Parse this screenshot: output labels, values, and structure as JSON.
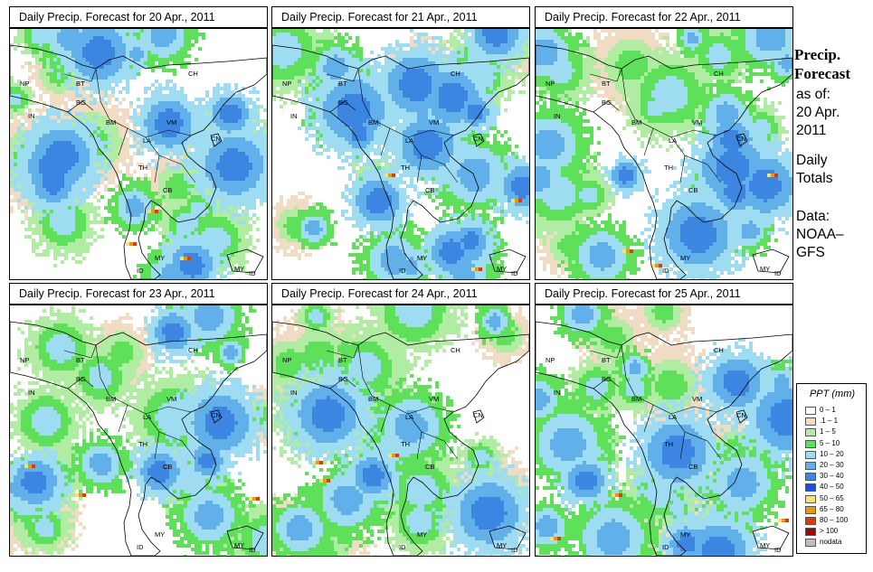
{
  "panels": [
    {
      "title": "Daily Precip. Forecast for  20 Apr., 2011",
      "labels": [
        "NP",
        "BT",
        "BG",
        "IN",
        "CH",
        "BM",
        "VM",
        "LA",
        "CN",
        "TH",
        "CB",
        "MY",
        "ID",
        "MY",
        "ID"
      ]
    },
    {
      "title": "Daily Precip. Forecast for  21 Apr., 2011",
      "labels": [
        "NP",
        "BT",
        "BG",
        "IN",
        "CH",
        "BM",
        "VM",
        "LA",
        "CN",
        "TH",
        "CB",
        "MY",
        "ID",
        "MY",
        "ID"
      ]
    },
    {
      "title": "Daily Precip. Forecast for  22 Apr., 2011",
      "labels": [
        "NP",
        "BT",
        "BG",
        "IN",
        "CH",
        "BM",
        "VM",
        "LA",
        "CN",
        "TH",
        "CB",
        "MY",
        "ID",
        "MY",
        "ID"
      ]
    },
    {
      "title": "Daily Precip. Forecast for  23 Apr., 2011",
      "labels": [
        "NP",
        "BT",
        "BG",
        "IN",
        "CH",
        "BM",
        "VM",
        "LA",
        "CN",
        "TH",
        "CB",
        "MY",
        "ID",
        "MY",
        "ID"
      ]
    },
    {
      "title": "Daily Precip. Forecast for  24 Apr., 2011",
      "labels": [
        "NP",
        "BT",
        "BG",
        "IN",
        "CH",
        "BM",
        "VM",
        "LA",
        "CN",
        "TH",
        "CB",
        "MY",
        "ID",
        "MY",
        "ID"
      ]
    },
    {
      "title": "Daily Precip. Forecast for  25 Apr., 2011",
      "labels": [
        "NP",
        "BT",
        "BG",
        "IN",
        "CH",
        "BM",
        "VM",
        "LA",
        "CN",
        "TH",
        "CB",
        "MY",
        "ID",
        "MY",
        "ID"
      ]
    }
  ],
  "sidebar": {
    "title_line1": "Precip.",
    "title_line2": "Forecast",
    "asof_line1": "as of:",
    "asof_line2": "20 Apr.",
    "asof_line3": "2011",
    "totals_line1": "Daily",
    "totals_line2": "Totals",
    "data_line1": "Data:",
    "data_line2": "NOAA–",
    "data_line3": "GFS"
  },
  "legend": {
    "title": "PPT (mm)",
    "items": [
      {
        "label": "0 – 1",
        "color": "#fefefe"
      },
      {
        "label": ".1 – 1",
        "color": "#f0dcc2"
      },
      {
        "label": "1 – 5",
        "color": "#b0eda2"
      },
      {
        "label": "5 – 10",
        "color": "#5ee05a"
      },
      {
        "label": "10 – 20",
        "color": "#9edcf2"
      },
      {
        "label": "20 – 30",
        "color": "#62b0ea"
      },
      {
        "label": "30 – 40",
        "color": "#3c86e2"
      },
      {
        "label": "40 – 50",
        "color": "#1c4ee0"
      },
      {
        "label": "50 – 65",
        "color": "#f6e46a"
      },
      {
        "label": "65 – 80",
        "color": "#f49600"
      },
      {
        "label": "80 – 100",
        "color": "#e03a00"
      },
      {
        "label": "> 100",
        "color": "#b00000"
      },
      {
        "label": "nodata",
        "color": "#bebebe"
      }
    ]
  }
}
